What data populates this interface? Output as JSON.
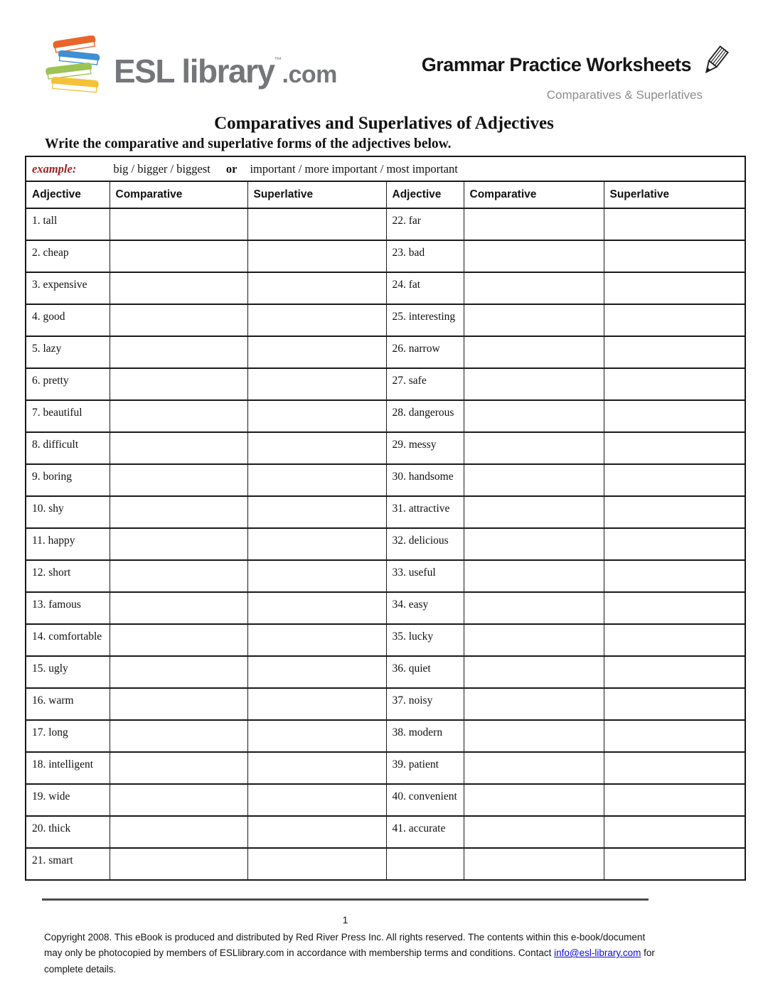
{
  "header": {
    "logo": {
      "esl_library": "ESL library",
      "tm": "™",
      "com": ".com"
    },
    "worksheet_type": "Grammar Practice Worksheets",
    "worksheet_subtitle": "Comparatives & Superlatives"
  },
  "title": "Comparatives and Superlatives of Adjectives",
  "instruction": "Write the comparative and superlative forms of the adjectives below.",
  "example": {
    "label": "example:",
    "first_set": "big / bigger / biggest",
    "conjunction": "or",
    "second_set": "important / more important / most important"
  },
  "table": {
    "headers": [
      "Adjective",
      "Comparative",
      "Superlative",
      "Adjective",
      "Comparative",
      "Superlative"
    ],
    "left_adjectives": [
      "1. tall",
      "2. cheap",
      "3. expensive",
      "4. good",
      "5. lazy",
      "6. pretty",
      "7. beautiful",
      "8. difficult",
      "9. boring",
      "10. shy",
      "11. happy",
      "12. short",
      "13. famous",
      "14. comfortable",
      "15. ugly",
      "16. warm",
      "17. long",
      "18. intelligent",
      "19. wide",
      "20. thick",
      "21. smart"
    ],
    "right_adjectives": [
      "22. far",
      "23. bad",
      "24. fat",
      "25. interesting",
      "26. narrow",
      "27. safe",
      "28. dangerous",
      "29. messy",
      "30. handsome",
      "31. attractive",
      "32. delicious",
      "33. useful",
      "34. easy",
      "35. lucky",
      "36. quiet",
      "37. noisy",
      "38. modern",
      "39. patient",
      "40. convenient",
      "41. accurate",
      ""
    ]
  },
  "footer": {
    "page_number": "1",
    "copyright_pre": "Copyright 2008.  This eBook is produced and distributed by Red River Press Inc.  All rights reserved.  The contents within this e-book/document may only be photocopied by members of ESLlibrary.com in accordance with membership terms and conditions. Contact ",
    "contact_link": "info@esl-library.com",
    "copyright_post": " for complete details."
  },
  "colors": {
    "example_label": "#9e1f1f",
    "link_blue": "#0b0bdd",
    "logo_gray": "#75767a",
    "footer_rule": "#4c4d4f",
    "book_orange": "#e8662a",
    "book_blue": "#3f8fd2",
    "book_green": "#9cc353",
    "book_yellow": "#f3c237"
  }
}
